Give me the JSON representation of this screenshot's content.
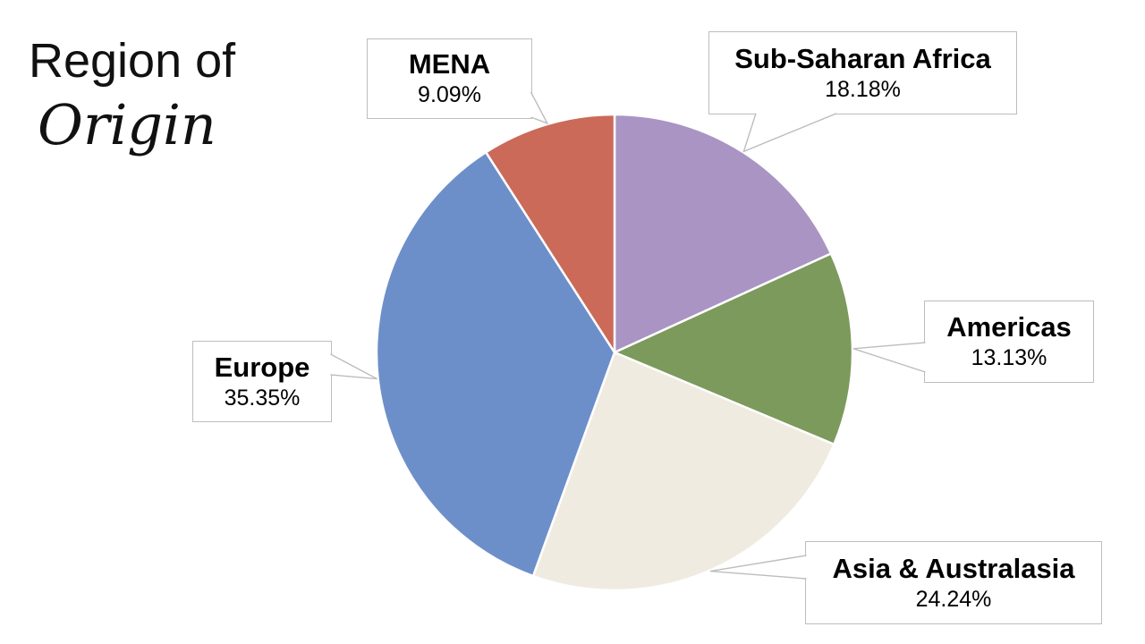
{
  "title": {
    "line1": "Region of",
    "line2": "Origin"
  },
  "chart_data": {
    "type": "pie",
    "title": "Region of Origin",
    "start_angle_deg": 0,
    "direction": "clockwise",
    "legend_position": "callout-labels",
    "slices": [
      {
        "label": "Sub-Saharan Africa",
        "value": 18.18,
        "pct_label": "18.18%",
        "color": "#A994C3"
      },
      {
        "label": "Americas",
        "value": 13.13,
        "pct_label": "13.13%",
        "color": "#7C9A5C"
      },
      {
        "label": "Asia & Australasia",
        "value": 24.24,
        "pct_label": "24.24%",
        "color": "#F0EBE0"
      },
      {
        "label": "Europe",
        "value": 35.35,
        "pct_label": "35.35%",
        "color": "#6D8FC9"
      },
      {
        "label": "MENA",
        "value": 9.09,
        "pct_label": "9.09%",
        "color": "#CB6A58"
      }
    ]
  },
  "styles": {
    "slice_border_color": "#FFFFFF",
    "callout_border_color": "#BDBDBD",
    "callout_fill": "#FFFFFF",
    "text_color": "#000000"
  }
}
